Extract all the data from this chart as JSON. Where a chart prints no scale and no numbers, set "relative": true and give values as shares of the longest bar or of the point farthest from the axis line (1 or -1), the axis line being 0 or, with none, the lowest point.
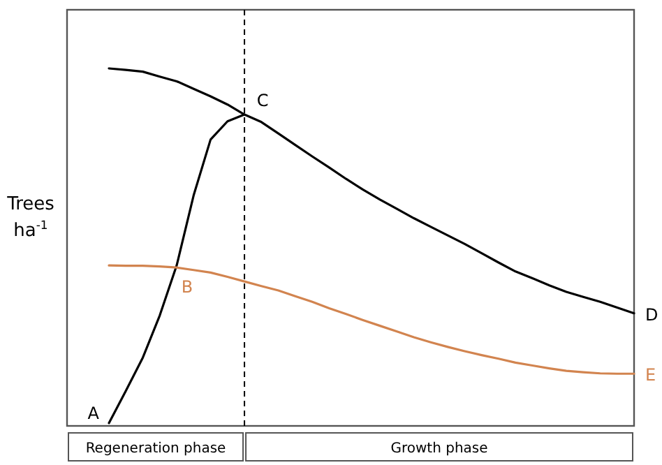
{
  "chart_data": {
    "type": "line",
    "relative": true,
    "ylabel": "Trees ha$^{-1}$",
    "categories": [
      null,
      null,
      null,
      null,
      null,
      null,
      null,
      null,
      null,
      null,
      null,
      null,
      null,
      null,
      null,
      null,
      null,
      null,
      null,
      null,
      null,
      null,
      null,
      null,
      null,
      null,
      null,
      null,
      null,
      null,
      null,
      null
    ],
    "series": [
      {
        "name": "D",
        "color": "#000000",
        "values": [
          1.0,
          0.996,
          0.991,
          0.977,
          0.964,
          0.943,
          0.922,
          0.899,
          0.871,
          0.85,
          0.818,
          0.786,
          0.754,
          0.723,
          0.691,
          0.661,
          0.633,
          0.607,
          0.581,
          0.557,
          0.533,
          0.509,
          0.483,
          0.457,
          0.432,
          0.413,
          0.393,
          0.375,
          0.361,
          0.347,
          0.331,
          0.315
        ]
      },
      {
        "name": "A",
        "color": "#000000",
        "values": [
          0.008,
          0.098,
          0.191,
          0.309,
          0.449,
          0.645,
          0.801,
          0.852,
          0.871,
          null,
          null,
          null,
          null,
          null,
          null,
          null,
          null,
          null,
          null,
          null,
          null,
          null,
          null,
          null,
          null,
          null,
          null,
          null,
          null,
          null,
          null,
          null
        ]
      },
      {
        "name": "E",
        "color": "#d2844f",
        "values": [
          0.449,
          0.448,
          0.448,
          0.446,
          0.443,
          0.436,
          0.429,
          0.417,
          0.404,
          0.391,
          0.379,
          0.363,
          0.347,
          0.329,
          0.313,
          0.296,
          0.28,
          0.264,
          0.248,
          0.234,
          0.221,
          0.209,
          0.198,
          0.188,
          0.177,
          0.169,
          0.161,
          0.154,
          0.15,
          0.147,
          0.146,
          0.146
        ]
      }
    ],
    "annotations": [
      "C",
      "B",
      "Regeneration phase",
      "Growth phase"
    ],
    "ref_lines": [
      {
        "axis": "x",
        "line_style": "dashed",
        "color": "#000000"
      }
    ]
  }
}
